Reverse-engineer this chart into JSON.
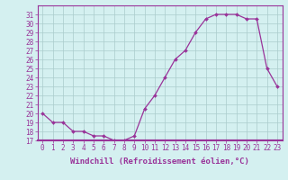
{
  "x": [
    0,
    1,
    2,
    3,
    4,
    5,
    6,
    7,
    8,
    9,
    10,
    11,
    12,
    13,
    14,
    15,
    16,
    17,
    18,
    19,
    20,
    21,
    22,
    23
  ],
  "y": [
    20,
    19,
    19,
    18,
    18,
    17.5,
    17.5,
    17,
    17,
    17.5,
    20.5,
    22,
    24,
    26,
    27,
    29,
    30.5,
    31,
    31,
    31,
    30.5,
    30.5,
    25,
    23
  ],
  "line_color": "#993399",
  "marker": "D",
  "marker_size": 2,
  "linewidth": 0.9,
  "bg_color": "#d4f0f0",
  "grid_color": "#aacccc",
  "axis_line_color": "#993399",
  "xlabel": "Windchill (Refroidissement éolien,°C)",
  "xlabel_fontsize": 6.5,
  "tick_fontsize": 5.5,
  "ylim": [
    17,
    32
  ],
  "yticks": [
    17,
    18,
    19,
    20,
    21,
    22,
    23,
    24,
    25,
    26,
    27,
    28,
    29,
    30,
    31
  ],
  "xticks": [
    0,
    1,
    2,
    3,
    4,
    5,
    6,
    7,
    8,
    9,
    10,
    11,
    12,
    13,
    14,
    15,
    16,
    17,
    18,
    19,
    20,
    21,
    22,
    23
  ],
  "xtick_labels": [
    "0",
    "1",
    "2",
    "3",
    "4",
    "5",
    "6",
    "7",
    "8",
    "9",
    "10",
    "11",
    "12",
    "13",
    "14",
    "15",
    "16",
    "17",
    "18",
    "19",
    "20",
    "21",
    "22",
    "23"
  ]
}
